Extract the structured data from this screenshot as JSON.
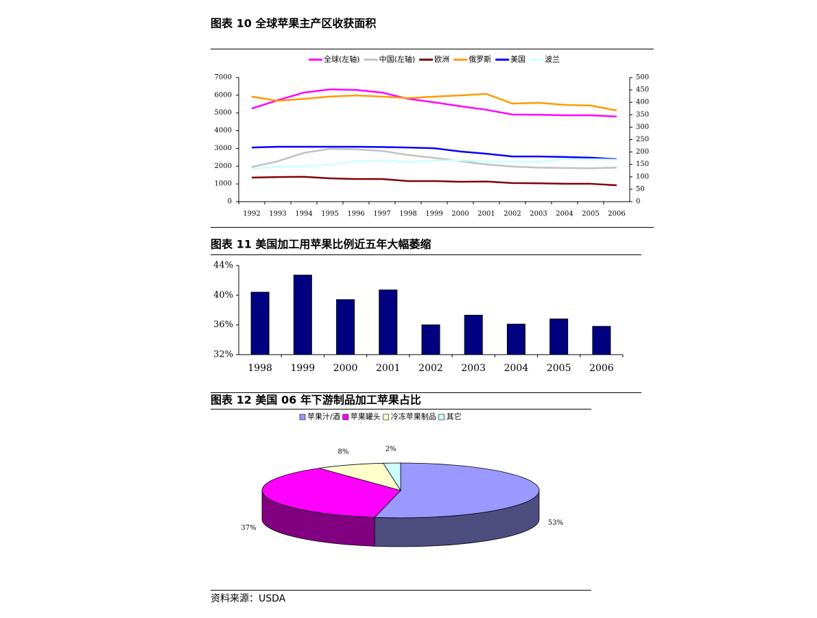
{
  "chart_data": [
    {
      "type": "line",
      "title": "图表 10 全球苹果主产区收获面积",
      "categories": [
        "1992",
        "1993",
        "1994",
        "1995",
        "1996",
        "1997",
        "1998",
        "1999",
        "2000",
        "2001",
        "2002",
        "2003",
        "2004",
        "2005",
        "2006"
      ],
      "series": [
        {
          "name": "全球(左轴)",
          "color": "#ff00ff",
          "values": [
            5250,
            5720,
            6150,
            6330,
            6300,
            6150,
            5800,
            5600,
            5380,
            5180,
            4910,
            4900,
            4870,
            4870,
            4800
          ]
        },
        {
          "name": "中国(左轴)",
          "color": "#c0c0c0",
          "values": [
            1950,
            2280,
            2750,
            2980,
            2950,
            2860,
            2630,
            2470,
            2280,
            2100,
            1980,
            1920,
            1900,
            1880,
            1920
          ]
        },
        {
          "name": "欧洲",
          "color": "#800000",
          "axis": "y2",
          "values": [
            97,
            99,
            100,
            94,
            91,
            91,
            83,
            83,
            80,
            81,
            75,
            74,
            72,
            72,
            66
          ]
        },
        {
          "name": "俄罗斯",
          "color": "#ff9900",
          "axis": "y2",
          "values": [
            423,
            406,
            414,
            423,
            428,
            423,
            417,
            423,
            428,
            434,
            395,
            398,
            390,
            387,
            367
          ]
        },
        {
          "name": "美国",
          "color": "#0000ff",
          "axis": "y2",
          "values": [
            218,
            221,
            221,
            221,
            221,
            220,
            218,
            215,
            202,
            193,
            182,
            182,
            180,
            177,
            171
          ]
        },
        {
          "name": "波兰",
          "color": "#ccffff",
          "axis": "y2",
          "values": [
            133,
            141,
            141,
            149,
            163,
            166,
            160,
            166,
            166,
            163,
            160,
            160,
            171,
            171,
            169
          ]
        }
      ],
      "ylim": [
        0,
        7000
      ],
      "yticks": [
        0,
        1000,
        2000,
        3000,
        4000,
        5000,
        6000,
        7000
      ],
      "y2lim": [
        0,
        500
      ],
      "y2ticks": [
        0,
        50,
        100,
        150,
        200,
        250,
        300,
        350,
        400,
        450,
        500
      ],
      "legend": "top"
    },
    {
      "type": "bar",
      "title": "图表 11 美国加工用苹果比例近五年大幅萎缩",
      "categories": [
        "1998",
        "1999",
        "2000",
        "2001",
        "2002",
        "2003",
        "2004",
        "2005",
        "2006"
      ],
      "values": [
        40.4,
        42.7,
        39.4,
        40.7,
        36.0,
        37.3,
        36.1,
        36.8,
        35.8
      ],
      "color": "#000080",
      "ylim": [
        32,
        44
      ],
      "yticks": [
        {
          "value": 32,
          "label": "32%"
        },
        {
          "value": 36,
          "label": "36%"
        },
        {
          "value": 40,
          "label": "40%"
        },
        {
          "value": 44,
          "label": "44%"
        }
      ]
    },
    {
      "type": "pie",
      "title": "图表 12 美国 06 年下游制品加工苹果占比",
      "categories": [
        "苹果汁/酒",
        "苹果罐头",
        "冷冻苹果制品",
        "其它"
      ],
      "values": [
        53,
        37,
        8,
        2
      ],
      "value_labels": [
        "53%",
        "37%",
        "8%",
        "2%"
      ],
      "colors": [
        "#9999ff",
        "#ff00ff",
        "#ffffcc",
        "#ccffff"
      ],
      "legend": "top"
    }
  ],
  "source": "资料来源：USDA"
}
